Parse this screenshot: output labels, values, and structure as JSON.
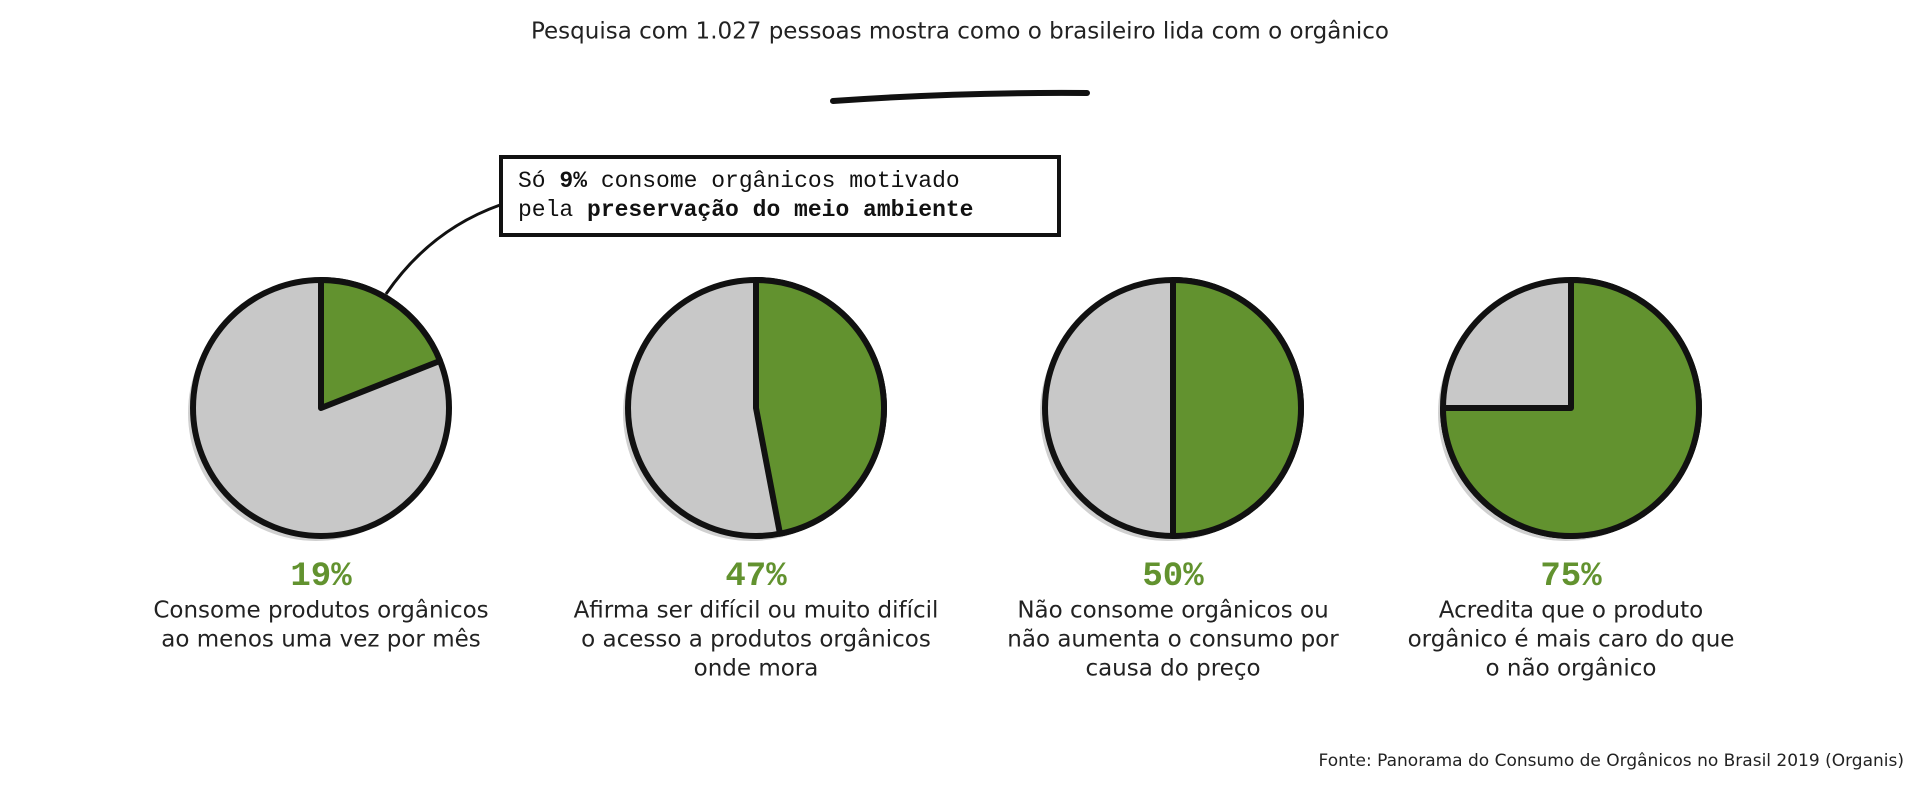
{
  "title": "Pesquisa com 1.027 pessoas mostra como o brasileiro lida com o orgânico",
  "annotation": {
    "lines": [
      [
        "Só ",
        "9%",
        " consome orgânicos motivado"
      ],
      [
        "pela ",
        "preservação do meio ambiente"
      ]
    ]
  },
  "source": "Fonte: Panorama do Consumo de Orgânicos no Brasil 2019 (Organis)",
  "chart_data": [
    {
      "type": "pie",
      "values": [
        19
      ],
      "value_labels": [
        "19%"
      ],
      "color": "#62922f",
      "rest_color": "#c8c8c8",
      "caption": [
        "Consome produtos orgânicos",
        "ao menos uma vez por mês"
      ]
    },
    {
      "type": "pie",
      "values": [
        47
      ],
      "value_labels": [
        "47%"
      ],
      "color": "#62922f",
      "rest_color": "#c8c8c8",
      "caption": [
        "Afirma ser difícil ou muito difícil",
        "o acesso a produtos orgânicos",
        "onde mora"
      ]
    },
    {
      "type": "pie",
      "values": [
        50
      ],
      "value_labels": [
        "50%"
      ],
      "color": "#62922f",
      "rest_color": "#c8c8c8",
      "caption": [
        "Não consome orgânicos ou",
        "não aumenta o consumo por",
        "causa do preço"
      ]
    },
    {
      "type": "pie",
      "values": [
        75
      ],
      "value_labels": [
        "75%"
      ],
      "color": "#62922f",
      "rest_color": "#c8c8c8",
      "caption": [
        "Acredita que o produto",
        "orgânico é mais caro do que",
        "o não orgânico"
      ]
    }
  ]
}
